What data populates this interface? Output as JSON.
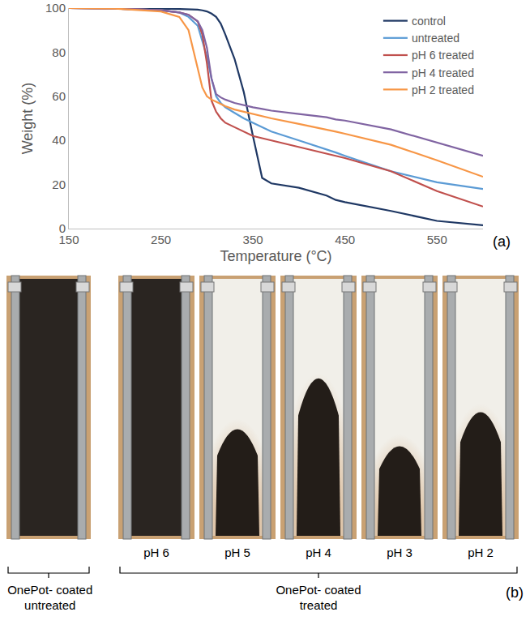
{
  "chart_data": {
    "type": "line",
    "x_label": "Temperature (°C)",
    "y_label": "Weight (%)",
    "x": [
      150,
      200,
      250,
      270,
      280,
      290,
      295,
      300,
      305,
      310,
      315,
      320,
      330,
      340,
      350,
      360,
      370,
      400,
      430,
      440,
      450,
      500,
      550,
      600
    ],
    "series": [
      {
        "name": "control",
        "color": "#1f3864",
        "values": [
          100,
          100,
          99.8,
          99.6,
          99.5,
          99.3,
          99,
          98.5,
          97.5,
          96,
          93,
          88,
          77,
          62,
          42,
          23,
          20.5,
          18.5,
          15,
          13,
          12,
          8,
          3.5,
          1.5
        ]
      },
      {
        "name": "untreated",
        "color": "#5b9bd5",
        "values": [
          100,
          99.8,
          99,
          98,
          96,
          92,
          85,
          78,
          68,
          60,
          57,
          55,
          52.5,
          50,
          48,
          46,
          44,
          40,
          36,
          34.5,
          33,
          26,
          21,
          18
        ]
      },
      {
        "name": "pH 6 treated",
        "color": "#c0504d",
        "values": [
          100,
          99.8,
          99,
          98,
          97,
          94,
          88,
          75,
          58,
          53,
          50,
          48,
          46,
          44,
          42,
          41,
          40,
          37,
          34,
          33,
          32,
          26,
          17,
          10
        ]
      },
      {
        "name": "pH 4 treated",
        "color": "#8064a2",
        "values": [
          100,
          99.8,
          99,
          98,
          97,
          94,
          90,
          82,
          68,
          61,
          59.5,
          58.5,
          57,
          56,
          55,
          54.3,
          53.5,
          52,
          50.5,
          49.5,
          49,
          45,
          39,
          33
        ]
      },
      {
        "name": "pH 2 treated",
        "color": "#f79646",
        "values": [
          100,
          99.8,
          98.5,
          96,
          90,
          72,
          64,
          60,
          58.5,
          57.5,
          56.5,
          55.5,
          54,
          53,
          52,
          51,
          50,
          47.5,
          45,
          44,
          43,
          38,
          31,
          23.5
        ]
      }
    ],
    "xlim": [
      150,
      600
    ],
    "xticks": [
      150,
      250,
      350,
      450,
      550
    ],
    "ylim": [
      0,
      100
    ],
    "yticks": [
      0,
      20,
      40,
      60,
      80,
      100
    ],
    "grid": false,
    "legend": "upper right"
  },
  "panel_a_label": "(a)",
  "panel_b": {
    "panel_label": "(b)",
    "groups": [
      {
        "label": [
          "OnePot- coated",
          "untreated"
        ],
        "strips": [
          null
        ]
      },
      {
        "label": [
          "OnePot- coated",
          "treated"
        ],
        "strips": [
          "pH 6",
          "pH 5",
          "pH 4",
          "pH 3",
          "pH 2"
        ]
      }
    ]
  }
}
